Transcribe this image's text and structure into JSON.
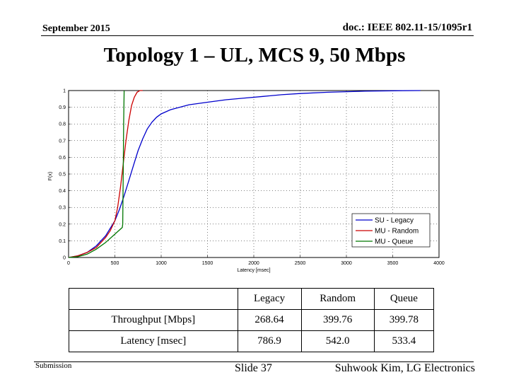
{
  "header": {
    "date": "September 2015",
    "doc": "doc.: IEEE 802.11-15/1095r1"
  },
  "title": "Topology 1 – UL, MCS 9, 50 Mbps",
  "chart_data": {
    "type": "line",
    "xlabel": "Latency [msec]",
    "ylabel": "F(x)",
    "xlim": [
      0,
      4000
    ],
    "ylim": [
      0,
      1
    ],
    "xticks": [
      "0",
      "500",
      "1000",
      "1500",
      "2000",
      "2500",
      "3000",
      "3500",
      "4000"
    ],
    "yticks": [
      "0",
      "0.1",
      "0.2",
      "0.3",
      "0.4",
      "0.5",
      "0.6",
      "0.7",
      "0.8",
      "0.9",
      "1"
    ],
    "grid": true,
    "legend_position": "bottom-right",
    "series": [
      {
        "name": "SU - Legacy",
        "color": "#0000cc",
        "x": [
          0,
          100,
          200,
          300,
          400,
          500,
          550,
          600,
          650,
          700,
          750,
          800,
          850,
          900,
          950,
          1000,
          1100,
          1200,
          1300,
          1500,
          1700,
          1900,
          2100,
          2300,
          2500,
          2800,
          3200,
          3600,
          3800
        ],
        "y": [
          0,
          0.01,
          0.03,
          0.07,
          0.13,
          0.22,
          0.29,
          0.37,
          0.46,
          0.55,
          0.64,
          0.71,
          0.77,
          0.81,
          0.84,
          0.86,
          0.885,
          0.9,
          0.915,
          0.93,
          0.945,
          0.955,
          0.965,
          0.975,
          0.982,
          0.99,
          0.996,
          0.999,
          1.0
        ]
      },
      {
        "name": "MU - Random",
        "color": "#cc0000",
        "x": [
          0,
          100,
          200,
          300,
          400,
          450,
          500,
          530,
          560,
          590,
          620,
          650,
          680,
          710,
          740,
          770,
          800
        ],
        "y": [
          0,
          0.01,
          0.03,
          0.06,
          0.12,
          0.16,
          0.22,
          0.3,
          0.42,
          0.56,
          0.7,
          0.82,
          0.91,
          0.96,
          0.99,
          1.0,
          1.0
        ]
      },
      {
        "name": "MU - Queue",
        "color": "#007700",
        "x": [
          0,
          100,
          200,
          300,
          400,
          500,
          580,
          585,
          590,
          595,
          600
        ],
        "y": [
          0,
          0.005,
          0.02,
          0.05,
          0.09,
          0.14,
          0.18,
          0.2,
          0.5,
          0.8,
          1.0
        ]
      }
    ]
  },
  "table": {
    "header": [
      "",
      "Legacy",
      "Random",
      "Queue"
    ],
    "rows": [
      {
        "label": "Throughput [Mbps]",
        "legacy": "268.64",
        "random": "399.76",
        "queue": "399.78"
      },
      {
        "label": "Latency [msec]",
        "legacy": "786.9",
        "random": "542.0",
        "queue": "533.4"
      }
    ]
  },
  "footer": {
    "left": "Submission",
    "center": "Slide 37",
    "right": "Suhwook Kim, LG Electronics"
  }
}
